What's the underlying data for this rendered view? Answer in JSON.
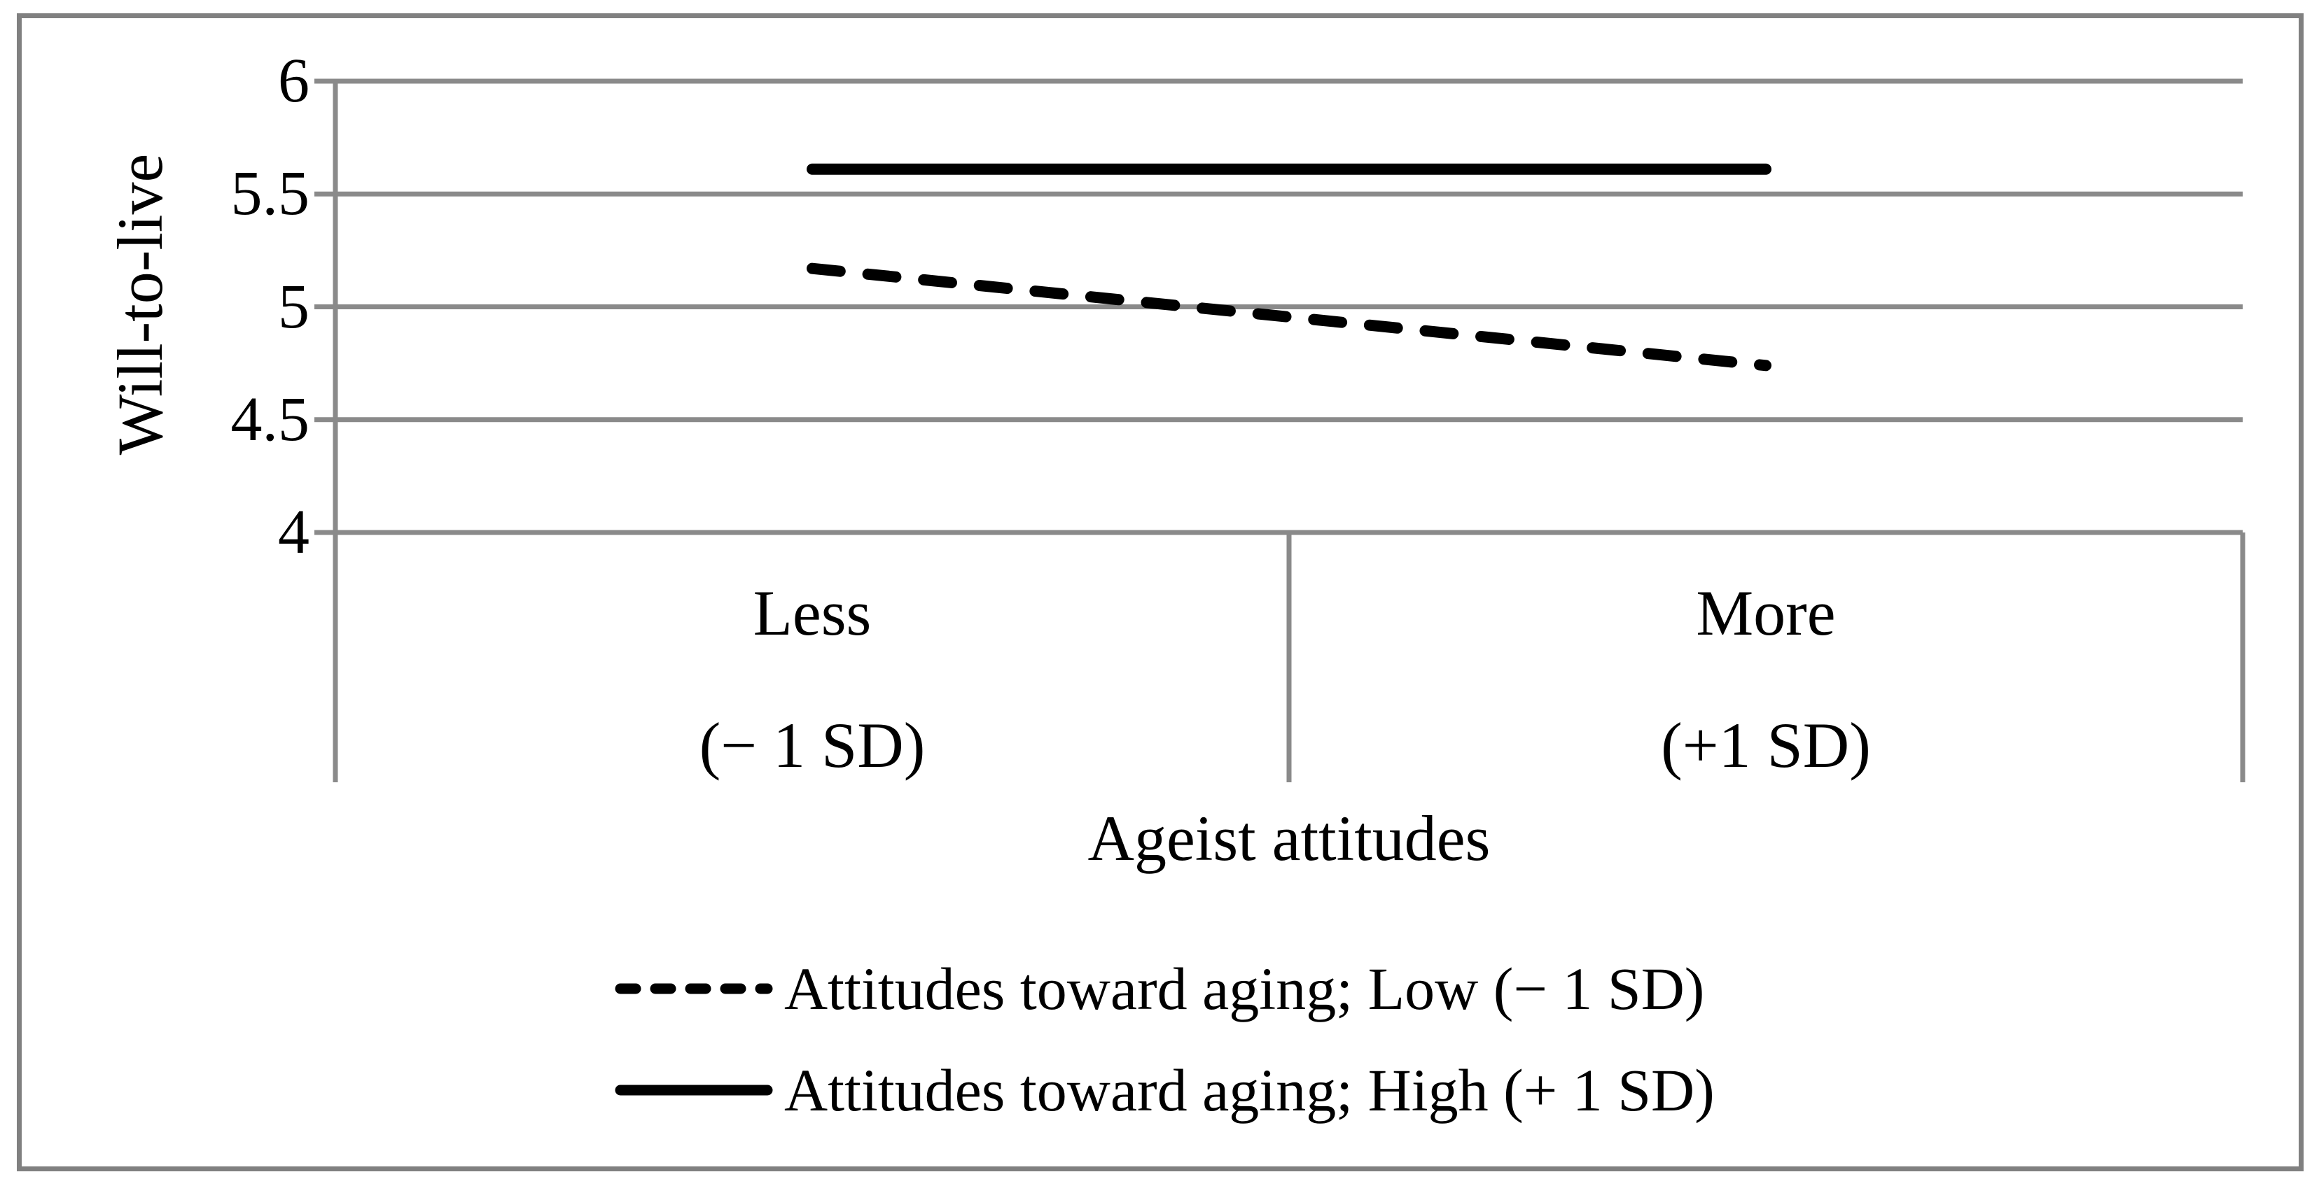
{
  "figure": {
    "background": "#ffffff",
    "border_color": "#808080",
    "text_color": "#000000"
  },
  "chart_data": {
    "type": "line",
    "xlabel": "Ageist attitudes",
    "ylabel": "Will-to-live",
    "ylim": [
      4,
      6
    ],
    "yticks": [
      {
        "value": 6,
        "label": "6"
      },
      {
        "value": 5.5,
        "label": "5.5"
      },
      {
        "value": 5,
        "label": "5"
      },
      {
        "value": 4.5,
        "label": "4.5"
      },
      {
        "value": 4,
        "label": "4"
      }
    ],
    "categories": [
      {
        "line1": "Less",
        "line2": "(− 1 SD)"
      },
      {
        "line1": "More",
        "line2": "(+1 SD)"
      }
    ],
    "series": [
      {
        "name": "Attitudes toward aging; Low (− 1 SD)",
        "style": "dashed",
        "color": "#000000",
        "values": [
          5.17,
          4.74
        ]
      },
      {
        "name": "Attitudes toward aging; High (+ 1 SD)",
        "style": "solid",
        "color": "#000000",
        "values": [
          5.61,
          5.61
        ]
      }
    ],
    "grid": "horizontal",
    "grid_color": "#8a8a8a",
    "legend_position": "bottom"
  }
}
